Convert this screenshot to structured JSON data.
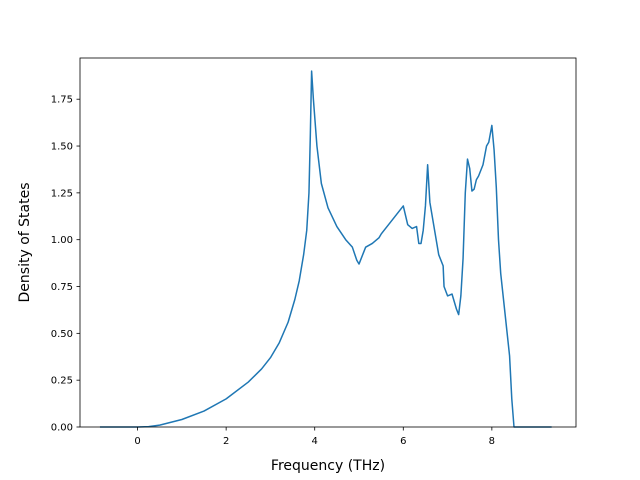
{
  "chart_data": {
    "type": "line",
    "title": "",
    "xlabel": "Frequency (THz)",
    "ylabel": "Density of States",
    "xlim": [
      -1.3,
      9.9
    ],
    "ylim": [
      0.0,
      1.97
    ],
    "xticks": [
      0,
      2,
      4,
      6,
      8
    ],
    "xtick_labels": [
      "0",
      "2",
      "4",
      "6",
      "8"
    ],
    "yticks": [
      0.0,
      0.25,
      0.5,
      0.75,
      1.0,
      1.25,
      1.5,
      1.75
    ],
    "ytick_labels": [
      "0.00",
      "0.25",
      "0.50",
      "0.75",
      "1.00",
      "1.25",
      "1.50",
      "1.75"
    ],
    "grid": false,
    "series": [
      {
        "color": "#1f77b4",
        "x": [
          -0.85,
          -0.5,
          0.0,
          0.25,
          0.5,
          1.0,
          1.5,
          2.0,
          2.5,
          2.8,
          3.0,
          3.2,
          3.4,
          3.55,
          3.65,
          3.75,
          3.82,
          3.87,
          3.9,
          3.93,
          3.97,
          4.05,
          4.15,
          4.3,
          4.5,
          4.7,
          4.85,
          4.95,
          5.0,
          5.1,
          5.15,
          5.3,
          5.45,
          5.5,
          5.7,
          5.9,
          6.0,
          6.1,
          6.2,
          6.3,
          6.35,
          6.4,
          6.45,
          6.5,
          6.55,
          6.6,
          6.7,
          6.8,
          6.9,
          6.92,
          7.0,
          7.1,
          7.2,
          7.25,
          7.3,
          7.35,
          7.4,
          7.45,
          7.5,
          7.55,
          7.6,
          7.65,
          7.7,
          7.8,
          7.88,
          7.93,
          8.0,
          8.05,
          8.1,
          8.15,
          8.2,
          8.3,
          8.4,
          8.45,
          8.5,
          8.55,
          8.7,
          9.0,
          9.35
        ],
        "y": [
          0.0,
          0.0,
          0.0,
          0.002,
          0.01,
          0.04,
          0.085,
          0.15,
          0.24,
          0.31,
          0.37,
          0.45,
          0.56,
          0.68,
          0.78,
          0.92,
          1.05,
          1.25,
          1.55,
          1.9,
          1.75,
          1.5,
          1.3,
          1.17,
          1.07,
          1.0,
          0.96,
          0.89,
          0.87,
          0.93,
          0.96,
          0.98,
          1.01,
          1.03,
          1.09,
          1.15,
          1.18,
          1.08,
          1.06,
          1.07,
          0.98,
          0.98,
          1.05,
          1.18,
          1.4,
          1.2,
          1.06,
          0.92,
          0.86,
          0.75,
          0.7,
          0.71,
          0.63,
          0.6,
          0.7,
          0.9,
          1.25,
          1.43,
          1.38,
          1.26,
          1.27,
          1.32,
          1.34,
          1.4,
          1.5,
          1.52,
          1.61,
          1.48,
          1.28,
          1.0,
          0.82,
          0.6,
          0.38,
          0.15,
          0.0,
          0.0,
          0.0,
          0.0,
          0.0
        ]
      }
    ]
  }
}
